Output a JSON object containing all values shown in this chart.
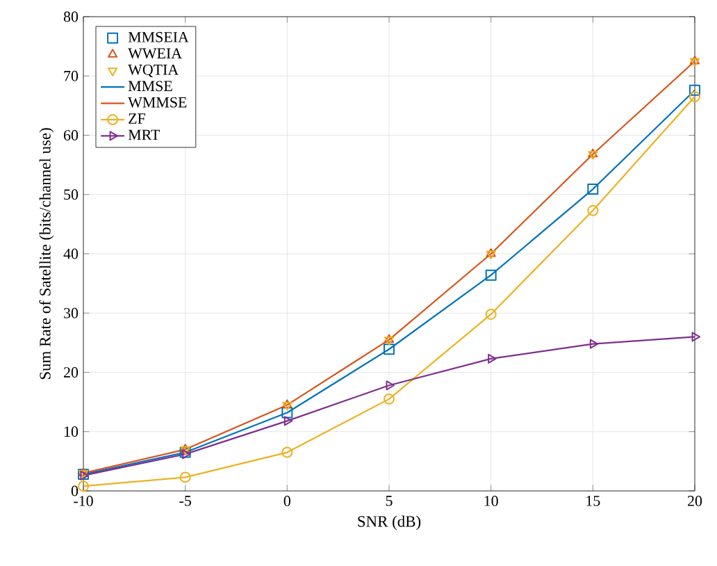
{
  "chart_data": {
    "type": "line",
    "xlabel": "SNR (dB)",
    "ylabel": "Sum Rate of Satellite (bits/channel use)",
    "x": [
      -10,
      -5,
      0,
      5,
      10,
      15,
      20
    ],
    "series": [
      {
        "name": "MMSEIA",
        "type": "scatter",
        "marker": "square",
        "color": "#0072bd",
        "values": [
          2.8,
          6.5,
          13.2,
          23.9,
          36.4,
          50.9,
          67.6
        ]
      },
      {
        "name": "WWEIA",
        "type": "scatter",
        "marker": "triangle",
        "color": "#d95319",
        "values": [
          3.0,
          7.0,
          14.5,
          25.5,
          40.0,
          56.8,
          72.5
        ]
      },
      {
        "name": "WQTIA",
        "type": "scatter",
        "marker": "triangle-down",
        "color": "#edb120",
        "values": [
          3.0,
          7.0,
          14.5,
          25.5,
          40.0,
          56.8,
          72.5
        ]
      },
      {
        "name": "MMSE",
        "marker": "none",
        "color": "#0072bd",
        "values": [
          2.8,
          6.5,
          13.2,
          23.9,
          36.4,
          50.9,
          67.6
        ]
      },
      {
        "name": "WMMSE",
        "marker": "none",
        "color": "#d95319",
        "values": [
          3.0,
          7.0,
          14.5,
          25.5,
          40.0,
          56.8,
          72.5
        ]
      },
      {
        "name": "ZF",
        "marker": "circle",
        "color": "#edb120",
        "values": [
          0.8,
          2.3,
          6.5,
          15.5,
          29.8,
          47.3,
          66.5
        ]
      },
      {
        "name": "MRT",
        "marker": "triangle-right",
        "color": "#7e2f8e",
        "values": [
          2.6,
          6.2,
          11.8,
          17.8,
          22.3,
          24.8,
          26.0
        ]
      }
    ],
    "xlim": [
      -10,
      20
    ],
    "xticks": [
      {
        "value": -10,
        "label": "-10"
      },
      {
        "value": -5,
        "label": "-5"
      },
      0,
      5,
      10,
      15,
      20
    ],
    "ylim": [
      0,
      80
    ],
    "yticks": [
      0,
      10,
      20,
      30,
      40,
      50,
      60,
      70,
      80
    ],
    "grid": true,
    "legend": "top left"
  }
}
